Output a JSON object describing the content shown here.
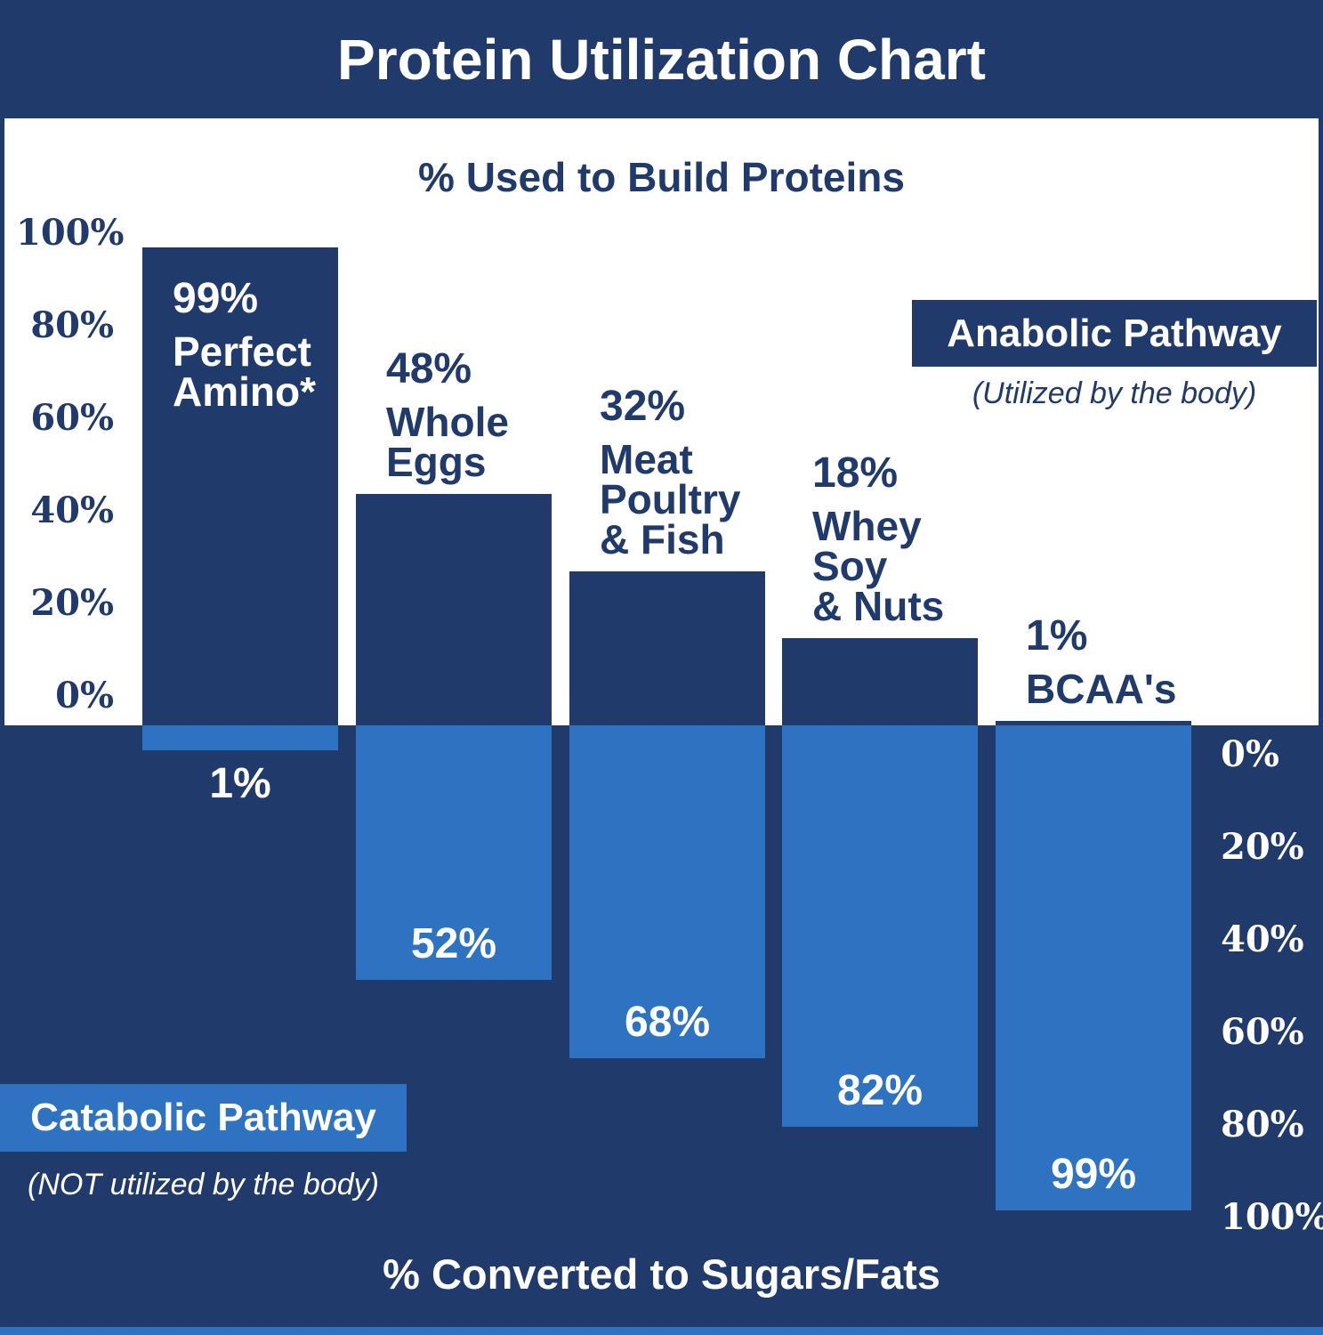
{
  "header": {
    "title": "Protein Utilization Chart"
  },
  "upper_axis_title": "% Used to Build Proteins",
  "lower_axis_title": "% Converted to Sugars/Fats",
  "legend": {
    "anabolic": {
      "label": "Anabolic Pathway",
      "caption": "(Utilized by the body)"
    },
    "catabolic": {
      "label": "Catabolic Pathway",
      "caption": "(NOT utilized by the body)"
    }
  },
  "colors": {
    "navy": "#213a6c",
    "light_blue": "#2e73c2",
    "white": "#ffffff"
  },
  "chart_data": {
    "type": "bar",
    "orientation": "diverging-vertical",
    "title": "Protein Utilization Chart",
    "upper_axis_title": "% Used to Build Proteins",
    "lower_axis_title": "% Converted to Sugars/Fats",
    "categories": [
      "Perfect Amino*",
      "Whole Eggs",
      "Meat Poultry & Fish",
      "Whey Soy & Nuts",
      "BCAA's"
    ],
    "category_lines": [
      [
        "Perfect",
        "Amino*"
      ],
      [
        "Whole",
        "Eggs"
      ],
      [
        "Meat",
        "Poultry",
        "& Fish"
      ],
      [
        "Whey",
        "Soy",
        "& Nuts"
      ],
      [
        "BCAA's"
      ]
    ],
    "series": [
      {
        "name": "Anabolic Pathway (Utilized by the body)",
        "values": [
          99,
          48,
          32,
          18,
          1
        ]
      },
      {
        "name": "Catabolic Pathway (NOT utilized by the body)",
        "values": [
          1,
          52,
          68,
          82,
          99
        ]
      }
    ],
    "bar_value_labels_up": [
      "99%",
      "48%",
      "32%",
      "18%",
      "1%"
    ],
    "bar_value_labels_down": [
      "1%",
      "52%",
      "68%",
      "82%",
      "99%"
    ],
    "up_axis_ticks": [
      "100%",
      "80%",
      "60%",
      "40%",
      "20%",
      "0%"
    ],
    "down_axis_ticks": [
      "0%",
      "20%",
      "40%",
      "60%",
      "80%",
      "100%"
    ],
    "up_axis_range": [
      0,
      100
    ],
    "down_axis_range": [
      0,
      100
    ],
    "grid": "off",
    "legend_position": {
      "anabolic": "upper-right",
      "catabolic": "lower-left"
    }
  }
}
